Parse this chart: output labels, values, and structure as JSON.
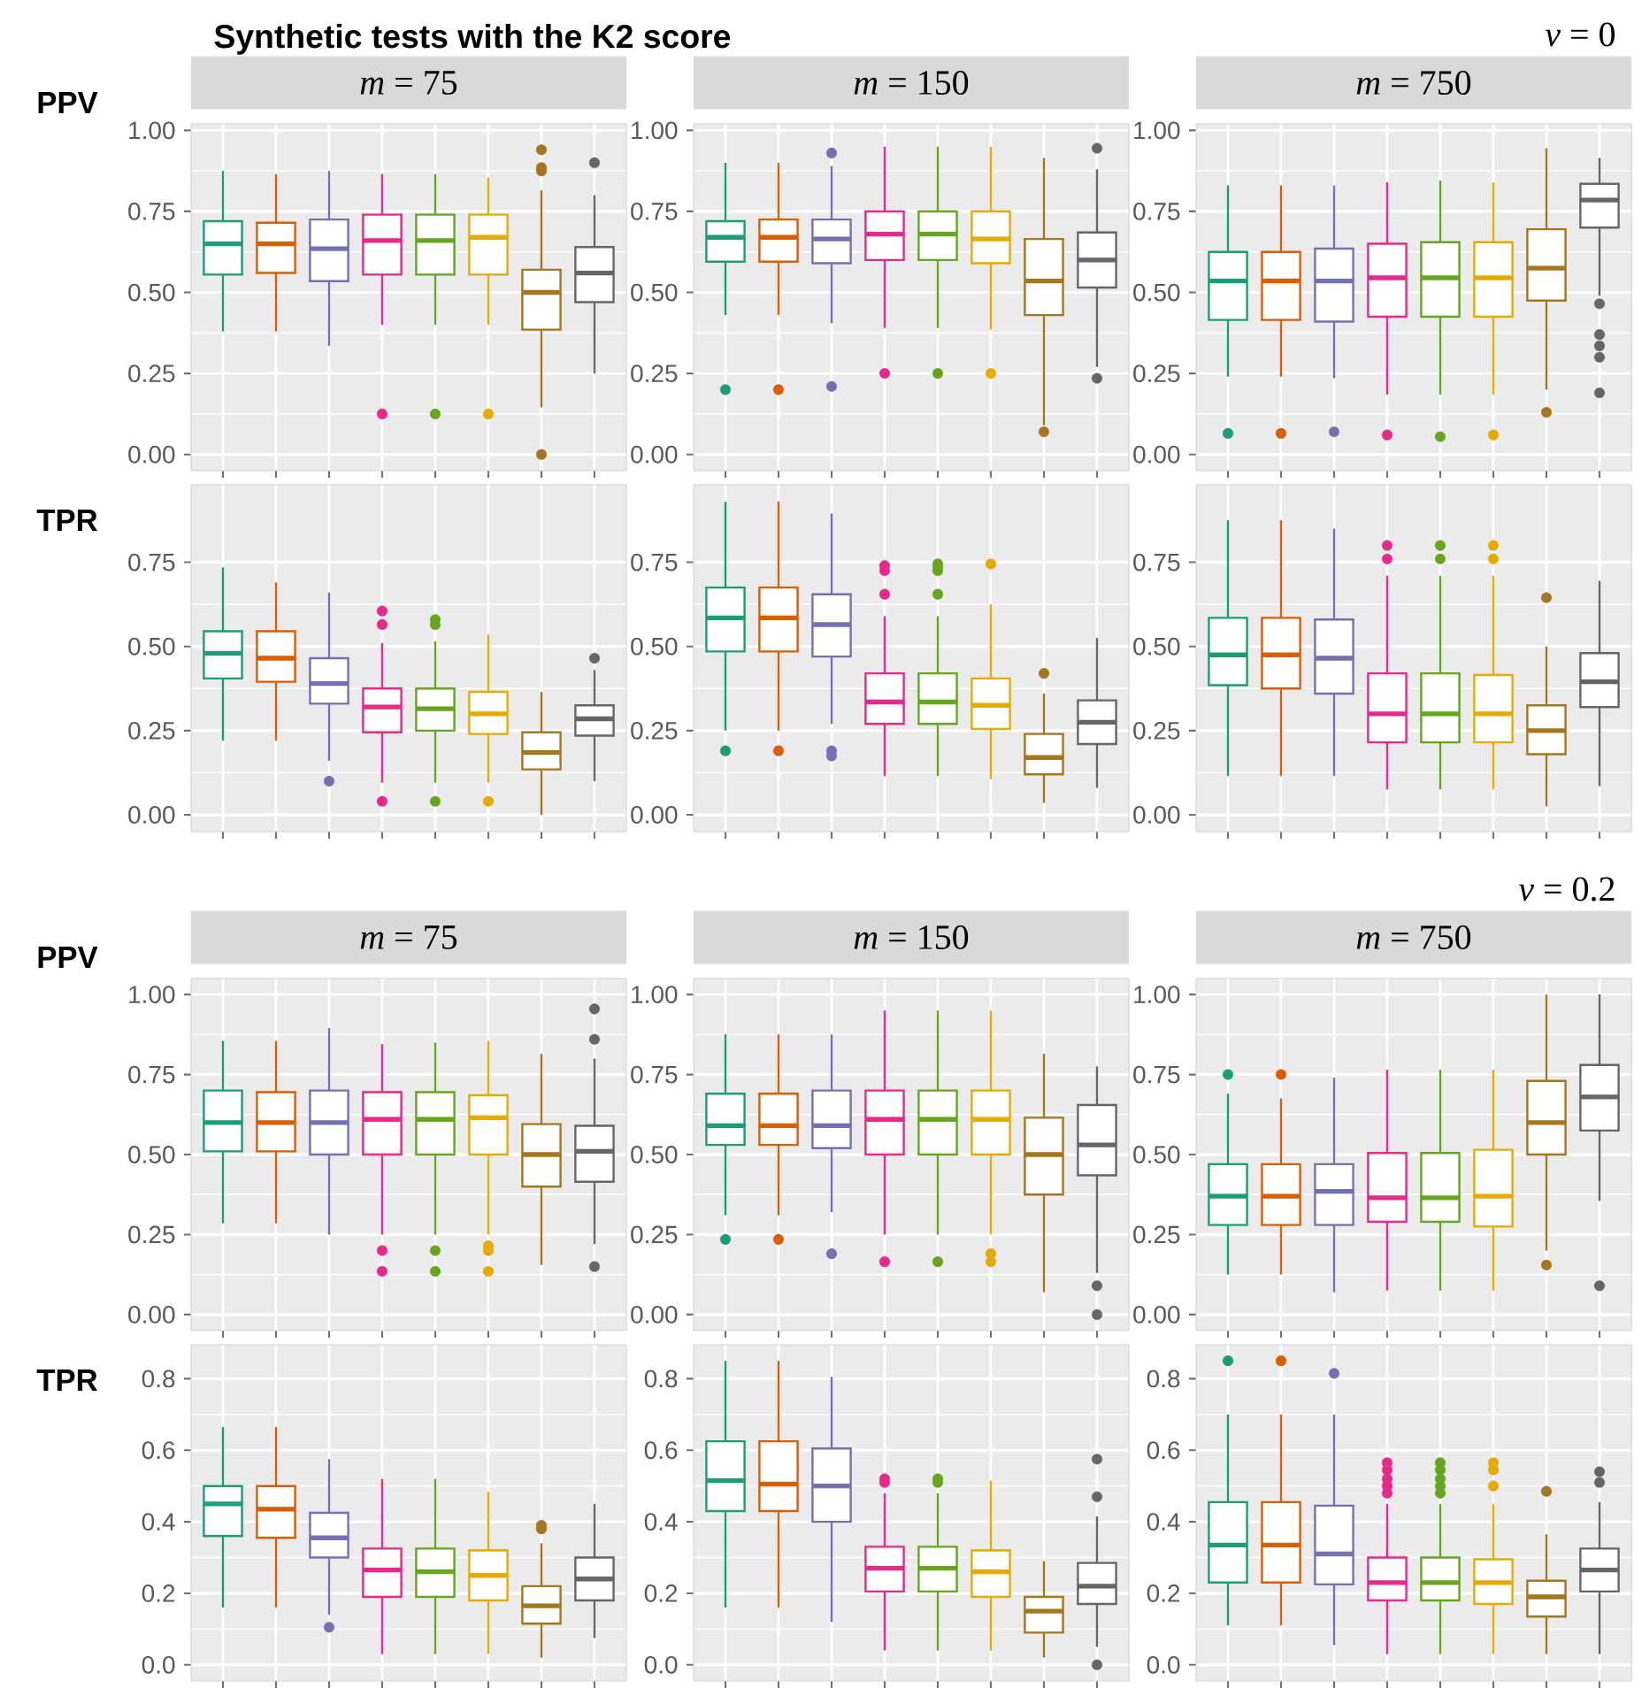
{
  "chart_data": [
    {
      "type": "box",
      "annotations": [
        "Synthetic tests with the K2 score"
      ],
      "title": "*m* = 75",
      "ylabel": "PPV",
      "categories": [
        null,
        null,
        null,
        null,
        null,
        null,
        null,
        null
      ],
      "colors": [
        "#1b9e77",
        "#d95f02",
        "#7570b3",
        "#e7298a",
        "#66a61e",
        "#e6ab02",
        "#a6761d",
        "#666666"
      ],
      "ylim": [
        -0.05,
        1.02
      ],
      "yticks": [
        {
          "value": 0,
          "label": "0.00"
        },
        {
          "value": 0.25,
          "label": "0.25"
        },
        {
          "value": 0.5,
          "label": "0.50"
        },
        {
          "value": 0.75,
          "label": "0.75"
        },
        {
          "value": 1,
          "label": "1.00"
        }
      ],
      "grid": true,
      "boxes": [
        {
          "low": 0.38,
          "q1": 0.555,
          "median": 0.65,
          "q3": 0.72,
          "high": 0.875
        },
        {
          "low": 0.38,
          "q1": 0.56,
          "median": 0.65,
          "q3": 0.715,
          "high": 0.865
        },
        {
          "low": 0.335,
          "q1": 0.535,
          "median": 0.635,
          "q3": 0.725,
          "high": 0.875
        },
        {
          "low": 0.4,
          "q1": 0.555,
          "median": 0.66,
          "q3": 0.74,
          "high": 0.865,
          "outliers": [
            0.125
          ]
        },
        {
          "low": 0.4,
          "q1": 0.555,
          "median": 0.66,
          "q3": 0.74,
          "high": 0.865,
          "outliers": [
            0.125
          ]
        },
        {
          "low": 0.4,
          "q1": 0.555,
          "median": 0.67,
          "q3": 0.74,
          "high": 0.855,
          "outliers": [
            0.125
          ]
        },
        {
          "low": 0.145,
          "q1": 0.385,
          "median": 0.5,
          "q3": 0.57,
          "high": 0.815,
          "outliers": [
            0,
            0.875,
            0.885,
            0.94
          ]
        },
        {
          "low": 0.25,
          "q1": 0.47,
          "median": 0.56,
          "q3": 0.64,
          "high": 0.8,
          "outliers": [
            0.9
          ]
        }
      ]
    },
    {
      "type": "box",
      "title": "*m* = 150",
      "categories": [
        null,
        null,
        null,
        null,
        null,
        null,
        null,
        null
      ],
      "colors": [
        "#1b9e77",
        "#d95f02",
        "#7570b3",
        "#e7298a",
        "#66a61e",
        "#e6ab02",
        "#a6761d",
        "#666666"
      ],
      "ylim": [
        -0.05,
        1.02
      ],
      "yticks": [
        {
          "value": 0,
          "label": "0.00"
        },
        {
          "value": 0.25,
          "label": "0.25"
        },
        {
          "value": 0.5,
          "label": "0.50"
        },
        {
          "value": 0.75,
          "label": "0.75"
        },
        {
          "value": 1,
          "label": "1.00"
        }
      ],
      "grid": true,
      "boxes": [
        {
          "low": 0.43,
          "q1": 0.595,
          "median": 0.67,
          "q3": 0.72,
          "high": 0.9,
          "outliers": [
            0.2
          ]
        },
        {
          "low": 0.43,
          "q1": 0.595,
          "median": 0.67,
          "q3": 0.725,
          "high": 0.9,
          "outliers": [
            0.2
          ]
        },
        {
          "low": 0.405,
          "q1": 0.59,
          "median": 0.665,
          "q3": 0.725,
          "high": 0.89,
          "outliers": [
            0.21,
            0.93
          ]
        },
        {
          "low": 0.39,
          "q1": 0.6,
          "median": 0.68,
          "q3": 0.75,
          "high": 0.95,
          "outliers": [
            0.25
          ]
        },
        {
          "low": 0.39,
          "q1": 0.6,
          "median": 0.68,
          "q3": 0.75,
          "high": 0.95,
          "outliers": [
            0.25
          ]
        },
        {
          "low": 0.385,
          "q1": 0.59,
          "median": 0.665,
          "q3": 0.75,
          "high": 0.95,
          "outliers": [
            0.25
          ]
        },
        {
          "low": 0.09,
          "q1": 0.43,
          "median": 0.535,
          "q3": 0.665,
          "high": 0.915,
          "outliers": [
            0.07
          ]
        },
        {
          "low": 0.27,
          "q1": 0.515,
          "median": 0.6,
          "q3": 0.685,
          "high": 0.88,
          "outliers": [
            0.235,
            0.945
          ]
        }
      ]
    },
    {
      "type": "box",
      "annotations": [
        "*ν* = 0"
      ],
      "title": "*m* = 750",
      "categories": [
        null,
        null,
        null,
        null,
        null,
        null,
        null,
        null
      ],
      "colors": [
        "#1b9e77",
        "#d95f02",
        "#7570b3",
        "#e7298a",
        "#66a61e",
        "#e6ab02",
        "#a6761d",
        "#666666"
      ],
      "ylim": [
        -0.05,
        1.02
      ],
      "yticks": [
        {
          "value": 0,
          "label": "0.00"
        },
        {
          "value": 0.25,
          "label": "0.25"
        },
        {
          "value": 0.5,
          "label": "0.50"
        },
        {
          "value": 0.75,
          "label": "0.75"
        },
        {
          "value": 1,
          "label": "1.00"
        }
      ],
      "grid": true,
      "boxes": [
        {
          "low": 0.24,
          "q1": 0.415,
          "median": 0.535,
          "q3": 0.625,
          "high": 0.83,
          "outliers": [
            0.065
          ]
        },
        {
          "low": 0.24,
          "q1": 0.415,
          "median": 0.535,
          "q3": 0.625,
          "high": 0.83,
          "outliers": [
            0.065
          ]
        },
        {
          "low": 0.235,
          "q1": 0.41,
          "median": 0.535,
          "q3": 0.635,
          "high": 0.83,
          "outliers": [
            0.07
          ]
        },
        {
          "low": 0.185,
          "q1": 0.425,
          "median": 0.545,
          "q3": 0.65,
          "high": 0.84,
          "outliers": [
            0.06
          ]
        },
        {
          "low": 0.185,
          "q1": 0.425,
          "median": 0.545,
          "q3": 0.655,
          "high": 0.845,
          "outliers": [
            0.055
          ]
        },
        {
          "low": 0.185,
          "q1": 0.425,
          "median": 0.545,
          "q3": 0.655,
          "high": 0.84,
          "outliers": [
            0.06
          ]
        },
        {
          "low": 0.2,
          "q1": 0.475,
          "median": 0.575,
          "q3": 0.695,
          "high": 0.945,
          "outliers": [
            0.13
          ]
        },
        {
          "low": 0.49,
          "q1": 0.7,
          "median": 0.785,
          "q3": 0.835,
          "high": 0.915,
          "outliers": [
            0.19,
            0.3,
            0.335,
            0.37,
            0.465
          ]
        }
      ]
    },
    {
      "type": "box",
      "ylabel": "TPR",
      "categories": [
        null,
        null,
        null,
        null,
        null,
        null,
        null,
        null
      ],
      "colors": [
        "#1b9e77",
        "#d95f02",
        "#7570b3",
        "#e7298a",
        "#66a61e",
        "#e6ab02",
        "#a6761d",
        "#666666"
      ],
      "ylim": [
        -0.05,
        0.98
      ],
      "yticks": [
        {
          "value": 0,
          "label": "0.00"
        },
        {
          "value": 0.25,
          "label": "0.25"
        },
        {
          "value": 0.5,
          "label": "0.50"
        },
        {
          "value": 0.75,
          "label": "0.75"
        }
      ],
      "grid": true,
      "boxes": [
        {
          "low": 0.22,
          "q1": 0.405,
          "median": 0.48,
          "q3": 0.545,
          "high": 0.735
        },
        {
          "low": 0.22,
          "q1": 0.395,
          "median": 0.465,
          "q3": 0.545,
          "high": 0.69
        },
        {
          "low": 0.16,
          "q1": 0.33,
          "median": 0.39,
          "q3": 0.465,
          "high": 0.66,
          "outliers": [
            0.1
          ]
        },
        {
          "low": 0.095,
          "q1": 0.245,
          "median": 0.32,
          "q3": 0.375,
          "high": 0.51,
          "outliers": [
            0.04,
            0.565,
            0.605
          ]
        },
        {
          "low": 0.095,
          "q1": 0.25,
          "median": 0.315,
          "q3": 0.375,
          "high": 0.515,
          "outliers": [
            0.04,
            0.565,
            0.58
          ]
        },
        {
          "low": 0.095,
          "q1": 0.24,
          "median": 0.3,
          "q3": 0.365,
          "high": 0.535,
          "outliers": [
            0.04
          ]
        },
        {
          "low": 0,
          "q1": 0.135,
          "median": 0.185,
          "q3": 0.245,
          "high": 0.365
        },
        {
          "low": 0.1,
          "q1": 0.235,
          "median": 0.285,
          "q3": 0.325,
          "high": 0.43,
          "outliers": [
            0.465
          ]
        }
      ]
    },
    {
      "type": "box",
      "categories": [
        null,
        null,
        null,
        null,
        null,
        null,
        null,
        null
      ],
      "colors": [
        "#1b9e77",
        "#d95f02",
        "#7570b3",
        "#e7298a",
        "#66a61e",
        "#e6ab02",
        "#a6761d",
        "#666666"
      ],
      "ylim": [
        -0.05,
        0.98
      ],
      "yticks": [
        {
          "value": 0,
          "label": "0.00"
        },
        {
          "value": 0.25,
          "label": "0.25"
        },
        {
          "value": 0.5,
          "label": "0.50"
        },
        {
          "value": 0.75,
          "label": "0.75"
        }
      ],
      "grid": true,
      "boxes": [
        {
          "low": 0.25,
          "q1": 0.485,
          "median": 0.585,
          "q3": 0.675,
          "high": 0.93,
          "outliers": [
            0.19
          ]
        },
        {
          "low": 0.25,
          "q1": 0.485,
          "median": 0.585,
          "q3": 0.675,
          "high": 0.93,
          "outliers": [
            0.19
          ]
        },
        {
          "low": 0.27,
          "q1": 0.47,
          "median": 0.565,
          "q3": 0.655,
          "high": 0.895,
          "outliers": [
            0.175,
            0.19
          ]
        },
        {
          "low": 0.115,
          "q1": 0.27,
          "median": 0.335,
          "q3": 0.42,
          "high": 0.59,
          "outliers": [
            0.655,
            0.725,
            0.74
          ]
        },
        {
          "low": 0.115,
          "q1": 0.27,
          "median": 0.335,
          "q3": 0.42,
          "high": 0.59,
          "outliers": [
            0.655,
            0.725,
            0.735,
            0.745
          ]
        },
        {
          "low": 0.105,
          "q1": 0.255,
          "median": 0.325,
          "q3": 0.405,
          "high": 0.625,
          "outliers": [
            0.745
          ]
        },
        {
          "low": 0.035,
          "q1": 0.12,
          "median": 0.17,
          "q3": 0.24,
          "high": 0.36,
          "outliers": [
            0.42
          ]
        },
        {
          "low": 0.08,
          "q1": 0.21,
          "median": 0.275,
          "q3": 0.34,
          "high": 0.525
        }
      ]
    },
    {
      "type": "box",
      "categories": [
        null,
        null,
        null,
        null,
        null,
        null,
        null,
        null
      ],
      "colors": [
        "#1b9e77",
        "#d95f02",
        "#7570b3",
        "#e7298a",
        "#66a61e",
        "#e6ab02",
        "#a6761d",
        "#666666"
      ],
      "ylim": [
        -0.05,
        0.98
      ],
      "yticks": [
        {
          "value": 0,
          "label": "0.00"
        },
        {
          "value": 0.25,
          "label": "0.25"
        },
        {
          "value": 0.5,
          "label": "0.50"
        },
        {
          "value": 0.75,
          "label": "0.75"
        }
      ],
      "grid": true,
      "boxes": [
        {
          "low": 0.115,
          "q1": 0.385,
          "median": 0.475,
          "q3": 0.585,
          "high": 0.875
        },
        {
          "low": 0.115,
          "q1": 0.375,
          "median": 0.475,
          "q3": 0.585,
          "high": 0.875
        },
        {
          "low": 0.115,
          "q1": 0.36,
          "median": 0.465,
          "q3": 0.58,
          "high": 0.85
        },
        {
          "low": 0.075,
          "q1": 0.215,
          "median": 0.3,
          "q3": 0.42,
          "high": 0.71,
          "outliers": [
            0.76,
            0.8
          ]
        },
        {
          "low": 0.075,
          "q1": 0.215,
          "median": 0.3,
          "q3": 0.42,
          "high": 0.71,
          "outliers": [
            0.76,
            0.8
          ]
        },
        {
          "low": 0.075,
          "q1": 0.215,
          "median": 0.3,
          "q3": 0.415,
          "high": 0.71,
          "outliers": [
            0.76,
            0.8
          ]
        },
        {
          "low": 0.025,
          "q1": 0.18,
          "median": 0.25,
          "q3": 0.325,
          "high": 0.5,
          "outliers": [
            0.645
          ]
        },
        {
          "low": 0.085,
          "q1": 0.32,
          "median": 0.395,
          "q3": 0.48,
          "high": 0.695
        }
      ]
    },
    {
      "type": "box",
      "title": "*m* = 75",
      "ylabel": "PPV",
      "categories": [
        null,
        null,
        null,
        null,
        null,
        null,
        null,
        null
      ],
      "colors": [
        "#1b9e77",
        "#d95f02",
        "#7570b3",
        "#e7298a",
        "#66a61e",
        "#e6ab02",
        "#a6761d",
        "#666666"
      ],
      "ylim": [
        -0.05,
        1.05
      ],
      "yticks": [
        {
          "value": 0,
          "label": "0.00"
        },
        {
          "value": 0.25,
          "label": "0.25"
        },
        {
          "value": 0.5,
          "label": "0.50"
        },
        {
          "value": 0.75,
          "label": "0.75"
        },
        {
          "value": 1,
          "label": "1.00"
        }
      ],
      "grid": true,
      "boxes": [
        {
          "low": 0.285,
          "q1": 0.51,
          "median": 0.6,
          "q3": 0.7,
          "high": 0.855
        },
        {
          "low": 0.285,
          "q1": 0.51,
          "median": 0.6,
          "q3": 0.695,
          "high": 0.855
        },
        {
          "low": 0.25,
          "q1": 0.5,
          "median": 0.6,
          "q3": 0.7,
          "high": 0.895
        },
        {
          "low": 0.25,
          "q1": 0.5,
          "median": 0.61,
          "q3": 0.695,
          "high": 0.845,
          "outliers": [
            0.135,
            0.2
          ]
        },
        {
          "low": 0.25,
          "q1": 0.5,
          "median": 0.61,
          "q3": 0.695,
          "high": 0.85,
          "outliers": [
            0.135,
            0.2
          ]
        },
        {
          "low": 0.25,
          "q1": 0.5,
          "median": 0.615,
          "q3": 0.685,
          "high": 0.855,
          "outliers": [
            0.135,
            0.2,
            0.215
          ]
        },
        {
          "low": 0.155,
          "q1": 0.4,
          "median": 0.5,
          "q3": 0.595,
          "high": 0.815
        },
        {
          "low": 0.22,
          "q1": 0.415,
          "median": 0.51,
          "q3": 0.59,
          "high": 0.8,
          "outliers": [
            0.15,
            0.86,
            0.955
          ]
        }
      ]
    },
    {
      "type": "box",
      "title": "*m* = 150",
      "categories": [
        null,
        null,
        null,
        null,
        null,
        null,
        null,
        null
      ],
      "colors": [
        "#1b9e77",
        "#d95f02",
        "#7570b3",
        "#e7298a",
        "#66a61e",
        "#e6ab02",
        "#a6761d",
        "#666666"
      ],
      "ylim": [
        -0.05,
        1.05
      ],
      "yticks": [
        {
          "value": 0,
          "label": "0.00"
        },
        {
          "value": 0.25,
          "label": "0.25"
        },
        {
          "value": 0.5,
          "label": "0.50"
        },
        {
          "value": 0.75,
          "label": "0.75"
        },
        {
          "value": 1,
          "label": "1.00"
        }
      ],
      "grid": true,
      "boxes": [
        {
          "low": 0.31,
          "q1": 0.53,
          "median": 0.59,
          "q3": 0.69,
          "high": 0.875,
          "outliers": [
            0.235
          ]
        },
        {
          "low": 0.31,
          "q1": 0.53,
          "median": 0.59,
          "q3": 0.69,
          "high": 0.875,
          "outliers": [
            0.235
          ]
        },
        {
          "low": 0.32,
          "q1": 0.52,
          "median": 0.59,
          "q3": 0.7,
          "high": 0.875,
          "outliers": [
            0.19
          ]
        },
        {
          "low": 0.25,
          "q1": 0.5,
          "median": 0.61,
          "q3": 0.7,
          "high": 0.95,
          "outliers": [
            0.165
          ]
        },
        {
          "low": 0.25,
          "q1": 0.5,
          "median": 0.61,
          "q3": 0.7,
          "high": 0.95,
          "outliers": [
            0.165
          ]
        },
        {
          "low": 0.25,
          "q1": 0.5,
          "median": 0.61,
          "q3": 0.7,
          "high": 0.95,
          "outliers": [
            0.165,
            0.19
          ]
        },
        {
          "low": 0.07,
          "q1": 0.375,
          "median": 0.5,
          "q3": 0.615,
          "high": 0.815
        },
        {
          "low": 0.13,
          "q1": 0.435,
          "median": 0.53,
          "q3": 0.655,
          "high": 0.775,
          "outliers": [
            0,
            0.09
          ]
        }
      ]
    },
    {
      "type": "box",
      "annotations": [
        "*ν* = 0.2"
      ],
      "title": "*m* = 750",
      "categories": [
        null,
        null,
        null,
        null,
        null,
        null,
        null,
        null
      ],
      "colors": [
        "#1b9e77",
        "#d95f02",
        "#7570b3",
        "#e7298a",
        "#66a61e",
        "#e6ab02",
        "#a6761d",
        "#666666"
      ],
      "ylim": [
        -0.05,
        1.05
      ],
      "yticks": [
        {
          "value": 0,
          "label": "0.00"
        },
        {
          "value": 0.25,
          "label": "0.25"
        },
        {
          "value": 0.5,
          "label": "0.50"
        },
        {
          "value": 0.75,
          "label": "0.75"
        },
        {
          "value": 1,
          "label": "1.00"
        }
      ],
      "grid": true,
      "boxes": [
        {
          "low": 0.125,
          "q1": 0.28,
          "median": 0.37,
          "q3": 0.47,
          "high": 0.69,
          "outliers": [
            0.75
          ]
        },
        {
          "low": 0.125,
          "q1": 0.28,
          "median": 0.37,
          "q3": 0.47,
          "high": 0.675,
          "outliers": [
            0.75
          ]
        },
        {
          "low": 0.07,
          "q1": 0.28,
          "median": 0.385,
          "q3": 0.47,
          "high": 0.74
        },
        {
          "low": 0.075,
          "q1": 0.29,
          "median": 0.365,
          "q3": 0.505,
          "high": 0.765
        },
        {
          "low": 0.075,
          "q1": 0.29,
          "median": 0.365,
          "q3": 0.505,
          "high": 0.765
        },
        {
          "low": 0.075,
          "q1": 0.275,
          "median": 0.37,
          "q3": 0.515,
          "high": 0.765
        },
        {
          "low": 0.2,
          "q1": 0.5,
          "median": 0.6,
          "q3": 0.73,
          "high": 1.0,
          "outliers": [
            0.155
          ]
        },
        {
          "low": 0.355,
          "q1": 0.575,
          "median": 0.68,
          "q3": 0.78,
          "high": 1.0,
          "outliers": [
            0.09
          ]
        }
      ]
    },
    {
      "type": "box",
      "ylabel": "TPR",
      "categories": [
        null,
        null,
        null,
        null,
        null,
        null,
        null,
        null
      ],
      "colors": [
        "#1b9e77",
        "#d95f02",
        "#7570b3",
        "#e7298a",
        "#66a61e",
        "#e6ab02",
        "#a6761d",
        "#666666"
      ],
      "ylim": [
        -0.045,
        0.895
      ],
      "yticks": [
        {
          "value": 0,
          "label": "0.0"
        },
        {
          "value": 0.2,
          "label": "0.2"
        },
        {
          "value": 0.4,
          "label": "0.4"
        },
        {
          "value": 0.6,
          "label": "0.6"
        },
        {
          "value": 0.8,
          "label": "0.8"
        }
      ],
      "grid": true,
      "boxes": [
        {
          "low": 0.16,
          "q1": 0.36,
          "median": 0.45,
          "q3": 0.5,
          "high": 0.665
        },
        {
          "low": 0.16,
          "q1": 0.355,
          "median": 0.435,
          "q3": 0.5,
          "high": 0.665
        },
        {
          "low": 0.14,
          "q1": 0.3,
          "median": 0.355,
          "q3": 0.425,
          "high": 0.575,
          "outliers": [
            0.105
          ]
        },
        {
          "low": 0.03,
          "q1": 0.19,
          "median": 0.265,
          "q3": 0.325,
          "high": 0.52
        },
        {
          "low": 0.03,
          "q1": 0.19,
          "median": 0.26,
          "q3": 0.325,
          "high": 0.52
        },
        {
          "low": 0.03,
          "q1": 0.18,
          "median": 0.25,
          "q3": 0.32,
          "high": 0.485
        },
        {
          "low": 0.02,
          "q1": 0.115,
          "median": 0.165,
          "q3": 0.22,
          "high": 0.34,
          "outliers": [
            0.38,
            0.39
          ]
        },
        {
          "low": 0.075,
          "q1": 0.18,
          "median": 0.24,
          "q3": 0.3,
          "high": 0.45
        }
      ]
    },
    {
      "type": "box",
      "categories": [
        null,
        null,
        null,
        null,
        null,
        null,
        null,
        null
      ],
      "colors": [
        "#1b9e77",
        "#d95f02",
        "#7570b3",
        "#e7298a",
        "#66a61e",
        "#e6ab02",
        "#a6761d",
        "#666666"
      ],
      "ylim": [
        -0.045,
        0.895
      ],
      "yticks": [
        {
          "value": 0,
          "label": "0.0"
        },
        {
          "value": 0.2,
          "label": "0.2"
        },
        {
          "value": 0.4,
          "label": "0.4"
        },
        {
          "value": 0.6,
          "label": "0.6"
        },
        {
          "value": 0.8,
          "label": "0.8"
        }
      ],
      "grid": true,
      "boxes": [
        {
          "low": 0.16,
          "q1": 0.43,
          "median": 0.515,
          "q3": 0.625,
          "high": 0.85
        },
        {
          "low": 0.16,
          "q1": 0.43,
          "median": 0.505,
          "q3": 0.625,
          "high": 0.85
        },
        {
          "low": 0.12,
          "q1": 0.4,
          "median": 0.5,
          "q3": 0.605,
          "high": 0.805
        },
        {
          "low": 0.04,
          "q1": 0.205,
          "median": 0.27,
          "q3": 0.33,
          "high": 0.48,
          "outliers": [
            0.51,
            0.52
          ]
        },
        {
          "low": 0.04,
          "q1": 0.205,
          "median": 0.27,
          "q3": 0.33,
          "high": 0.48,
          "outliers": [
            0.51,
            0.52
          ]
        },
        {
          "low": 0.04,
          "q1": 0.19,
          "median": 0.26,
          "q3": 0.32,
          "high": 0.515
        },
        {
          "low": 0.02,
          "q1": 0.09,
          "median": 0.15,
          "q3": 0.19,
          "high": 0.29
        },
        {
          "low": 0.05,
          "q1": 0.17,
          "median": 0.22,
          "q3": 0.285,
          "high": 0.415,
          "outliers": [
            0,
            0.47,
            0.575
          ]
        }
      ]
    },
    {
      "type": "box",
      "categories": [
        null,
        null,
        null,
        null,
        null,
        null,
        null,
        null
      ],
      "colors": [
        "#1b9e77",
        "#d95f02",
        "#7570b3",
        "#e7298a",
        "#66a61e",
        "#e6ab02",
        "#a6761d",
        "#666666"
      ],
      "ylim": [
        -0.045,
        0.895
      ],
      "yticks": [
        {
          "value": 0,
          "label": "0.0"
        },
        {
          "value": 0.2,
          "label": "0.2"
        },
        {
          "value": 0.4,
          "label": "0.4"
        },
        {
          "value": 0.6,
          "label": "0.6"
        },
        {
          "value": 0.8,
          "label": "0.8"
        }
      ],
      "grid": true,
      "boxes": [
        {
          "low": 0.11,
          "q1": 0.23,
          "median": 0.335,
          "q3": 0.455,
          "high": 0.7,
          "outliers": [
            0.85
          ]
        },
        {
          "low": 0.11,
          "q1": 0.23,
          "median": 0.335,
          "q3": 0.455,
          "high": 0.7,
          "outliers": [
            0.85
          ]
        },
        {
          "low": 0.055,
          "q1": 0.225,
          "median": 0.31,
          "q3": 0.445,
          "high": 0.7,
          "outliers": [
            0.815
          ]
        },
        {
          "low": 0.03,
          "q1": 0.18,
          "median": 0.23,
          "q3": 0.3,
          "high": 0.45,
          "outliers": [
            0.48,
            0.5,
            0.52,
            0.545,
            0.565
          ]
        },
        {
          "low": 0.03,
          "q1": 0.18,
          "median": 0.23,
          "q3": 0.3,
          "high": 0.45,
          "outliers": [
            0.48,
            0.5,
            0.52,
            0.545,
            0.565
          ]
        },
        {
          "low": 0.03,
          "q1": 0.17,
          "median": 0.23,
          "q3": 0.295,
          "high": 0.45,
          "outliers": [
            0.5,
            0.545,
            0.565
          ]
        },
        {
          "low": 0.03,
          "q1": 0.135,
          "median": 0.19,
          "q3": 0.235,
          "high": 0.365,
          "outliers": [
            0.485
          ]
        },
        {
          "low": 0.03,
          "q1": 0.205,
          "median": 0.265,
          "q3": 0.325,
          "high": 0.455,
          "outliers": [
            0.51,
            0.54
          ]
        }
      ]
    }
  ]
}
